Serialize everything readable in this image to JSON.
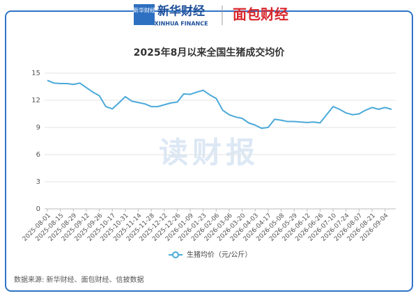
{
  "header": {
    "logo_cn": "新华财经",
    "logo_en": "XINHUA FINANCE",
    "logo_right": "面包财经"
  },
  "watermark": "读财报",
  "footer": {
    "source": "数据来源: 新华财经、面包财经、信披数据"
  },
  "chart_data": {
    "type": "line",
    "title": "2025年8月以来全国生猪成交均价",
    "categories": [
      "2025-08-01",
      null,
      "2025-08-15",
      null,
      "2025-08-29",
      null,
      "2025-09-12",
      null,
      "2025-09-26",
      null,
      "2025-10-17",
      null,
      "2025-10-31",
      null,
      "2025-11-14",
      null,
      "2025-11-28",
      null,
      "2025-12-12",
      null,
      "2025-12-26",
      null,
      "2026-01-09",
      null,
      "2026-01-23",
      null,
      "2026-02-06",
      null,
      "2026-03-06",
      null,
      "2026-03-20",
      null,
      "2026-04-03",
      null,
      "2026-04-17",
      null,
      "2026-05-08",
      null,
      "2026-05-29",
      null,
      "2026-06-12",
      null,
      "2026-06-26",
      null,
      "2026-07-10",
      null,
      "2026-07-24",
      null,
      "2026-08-07",
      null,
      "2026-08-21",
      null,
      "2026-09-04",
      null
    ],
    "series": [
      {
        "name": "生猪均价（元/公斤）",
        "color": "#4aa9d9",
        "values": [
          14.2,
          13.9,
          13.85,
          13.85,
          13.75,
          13.9,
          13.4,
          12.9,
          12.5,
          11.3,
          11.05,
          11.7,
          12.4,
          11.9,
          11.75,
          11.6,
          11.3,
          11.3,
          11.5,
          11.7,
          11.8,
          12.7,
          12.65,
          12.9,
          13.1,
          12.6,
          12.2,
          10.9,
          10.4,
          10.15,
          10.0,
          9.5,
          9.25,
          8.9,
          9.0,
          9.9,
          9.8,
          9.65,
          9.65,
          9.6,
          9.55,
          9.6,
          9.5,
          10.4,
          11.3,
          11.0,
          10.6,
          10.4,
          10.5,
          10.9,
          11.2,
          11.0,
          11.2,
          11.0
        ]
      }
    ],
    "ylim": [
      0,
      15
    ],
    "yticks": [
      0,
      3,
      6,
      9,
      12,
      15
    ],
    "grid": true,
    "legend": "bottom"
  }
}
